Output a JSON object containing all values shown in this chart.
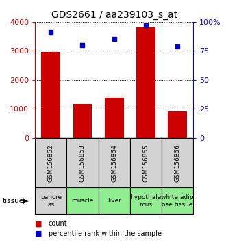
{
  "title": "GDS2661 / aa239103_s_at",
  "samples": [
    "GSM156852",
    "GSM156853",
    "GSM156854",
    "GSM156855",
    "GSM156856"
  ],
  "tissue_texts": [
    "pancre\nas",
    "muscle",
    "liver",
    "hypothala\nmus",
    "white adip\nose tissue"
  ],
  "tissue_colors": [
    "#d3d3d3",
    "#90ee90",
    "#90ee90",
    "#90ee90",
    "#90ee90"
  ],
  "counts": [
    2950,
    1180,
    1380,
    3820,
    920
  ],
  "percentiles": [
    91,
    80,
    85,
    97,
    79
  ],
  "ylim_left": [
    0,
    4000
  ],
  "ylim_right": [
    0,
    100
  ],
  "yticks_left": [
    0,
    1000,
    2000,
    3000,
    4000
  ],
  "yticks_right": [
    0,
    25,
    50,
    75,
    100
  ],
  "yticklabels_left": [
    "0",
    "1000",
    "2000",
    "3000",
    "4000"
  ],
  "yticklabels_right": [
    "0",
    "25",
    "50",
    "75",
    "100%"
  ],
  "bar_color": "#cc0000",
  "dot_color": "#0000cc",
  "background_color": "#ffffff",
  "gsm_cell_color": "#d3d3d3",
  "tissue_label": "tissue",
  "legend_count": "count",
  "legend_percentile": "percentile rank within the sample",
  "title_fontsize": 10,
  "tick_fontsize": 8,
  "gsm_fontsize": 6.5,
  "tissue_fontsize": 6.5,
  "legend_fontsize": 7
}
